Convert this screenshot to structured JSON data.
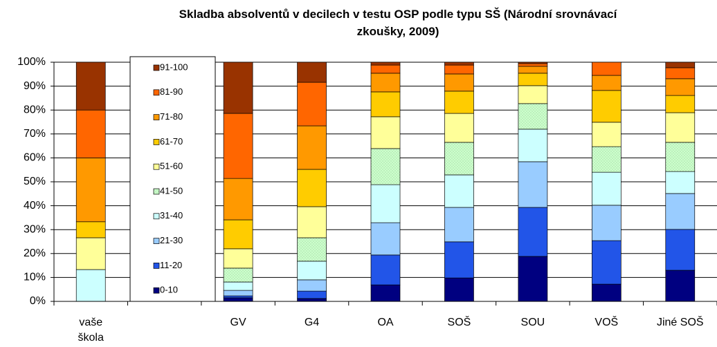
{
  "chart_data": {
    "type": "stacked_bar",
    "title": "Skladba absolventů v decilech v testu OSP podle typu SŠ (Národní srovnávací zkoušky, 2009)",
    "categories": [
      "vaše škola",
      null,
      "GV",
      "G4",
      "OA",
      "SOŠ",
      "SOU",
      "VOŠ",
      "Jiné SOŠ"
    ],
    "series": [
      {
        "name": "0-10",
        "color": "#000080",
        "values": [
          0,
          null,
          1.5,
          1.2,
          6.9,
          9.8,
          18.8,
          7.2,
          13
        ]
      },
      {
        "name": "11-20",
        "color": "#2255e8",
        "values": [
          0,
          null,
          0.8,
          3.1,
          12.5,
          15.1,
          20.5,
          18.2,
          17.1
        ]
      },
      {
        "name": "21-30",
        "color": "#99ccff",
        "values": [
          0,
          null,
          2.3,
          4.7,
          13.5,
          14.4,
          19.1,
          14.8,
          15
        ]
      },
      {
        "name": "31-40",
        "color": "#ccffff",
        "values": [
          13.3,
          null,
          3.5,
          7.8,
          15.9,
          13.6,
          13.6,
          13.8,
          9.2
        ]
      },
      {
        "name": "41-50",
        "color": "#ccffcc",
        "values": [
          0,
          null,
          5.8,
          9.8,
          15.1,
          13.6,
          10.7,
          10.7,
          12.2
        ]
      },
      {
        "name": "51-60",
        "color": "#ffff99",
        "values": [
          13.3,
          null,
          8.1,
          13,
          13.3,
          12.1,
          7.5,
          10.2,
          12.4
        ]
      },
      {
        "name": "61-70",
        "color": "#ffcc00",
        "values": [
          6.7,
          null,
          12.1,
          15.6,
          10.4,
          9.3,
          5.2,
          13.3,
          7.2
        ]
      },
      {
        "name": "71-80",
        "color": "#ff9900",
        "values": [
          26.7,
          null,
          17.3,
          18.2,
          7.8,
          7.2,
          2.9,
          6.3,
          7
        ]
      },
      {
        "name": "81-90",
        "color": "#ff6600",
        "values": [
          20,
          null,
          27.2,
          18.2,
          3.4,
          3.7,
          1.1,
          5.5,
          4.6
        ]
      },
      {
        "name": "91-100",
        "color": "#993300",
        "values": [
          20,
          null,
          21.4,
          8.4,
          1.2,
          1.2,
          0.6,
          0,
          2.3
        ]
      }
    ],
    "ylim": [
      0,
      100
    ],
    "yticks": [
      {
        "value": 0,
        "label": "0%"
      },
      {
        "value": 10,
        "label": "10%"
      },
      {
        "value": 20,
        "label": "20%"
      },
      {
        "value": 30,
        "label": "30%"
      },
      {
        "value": 40,
        "label": "40%"
      },
      {
        "value": 50,
        "label": "50%"
      },
      {
        "value": 60,
        "label": "60%"
      },
      {
        "value": 70,
        "label": "70%"
      },
      {
        "value": 80,
        "label": "80%"
      },
      {
        "value": 90,
        "label": "90%"
      },
      {
        "value": 100,
        "label": "100%"
      }
    ],
    "grid": true
  }
}
